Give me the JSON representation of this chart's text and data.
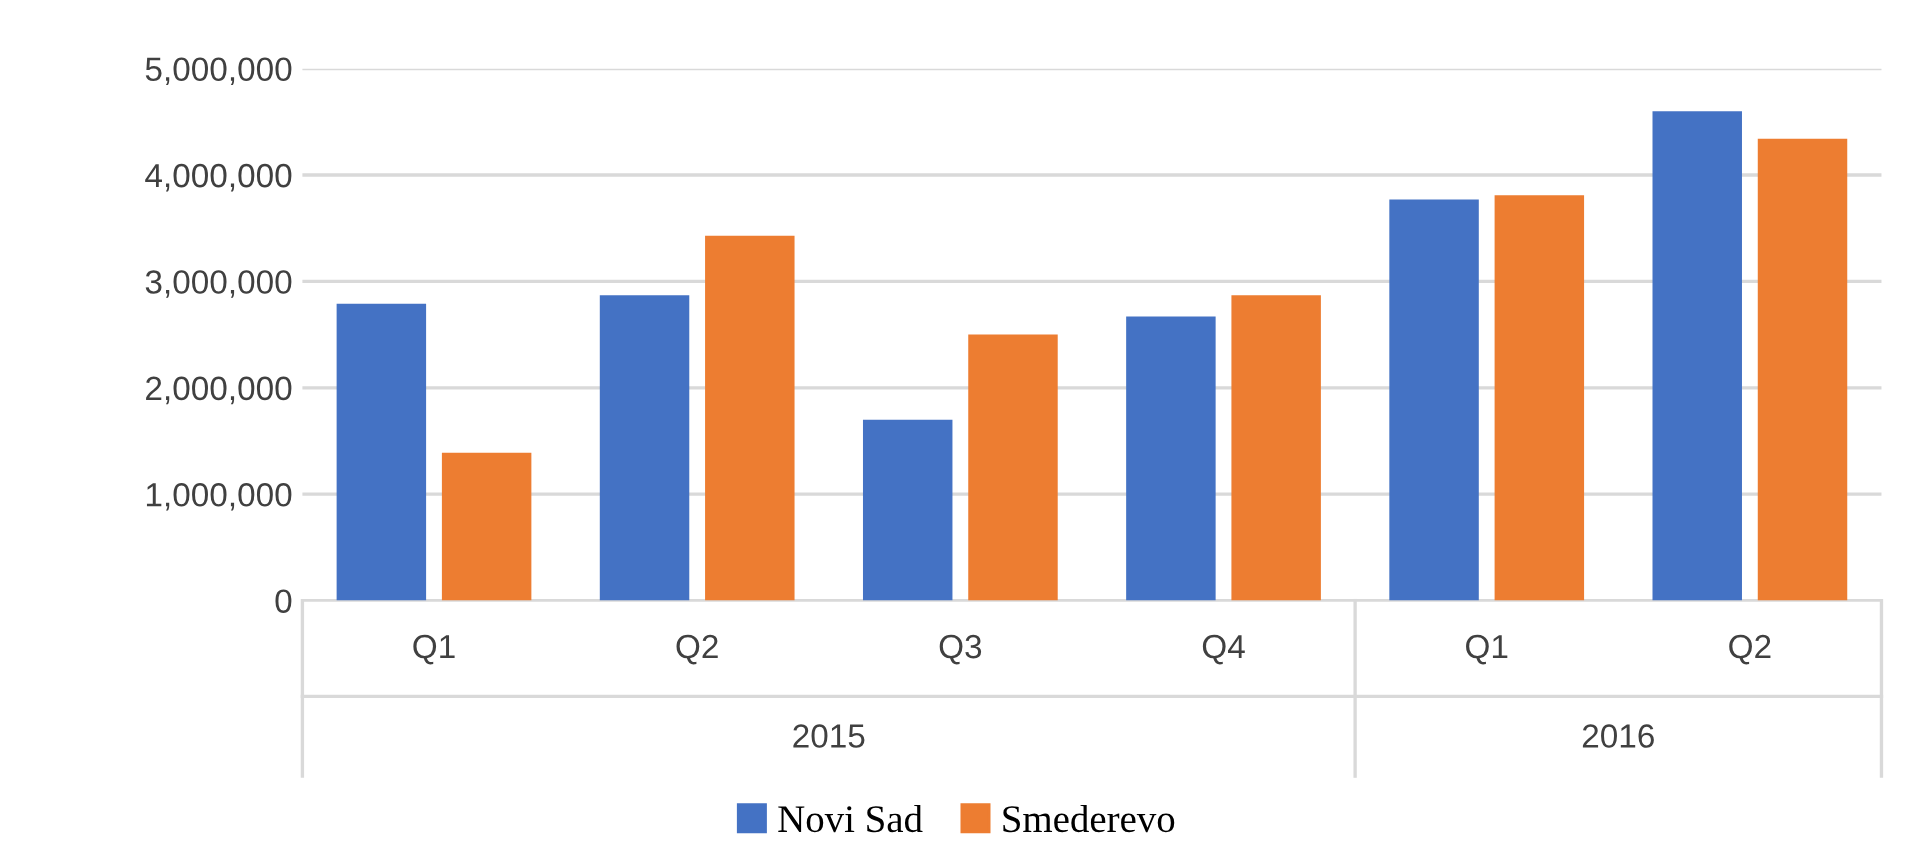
{
  "chart_data": {
    "type": "bar",
    "categories": [
      "Q1",
      "Q2",
      "Q3",
      "Q4",
      "Q1",
      "Q2"
    ],
    "series": [
      {
        "name": "Novi Sad",
        "color": "#4472c4",
        "values": [
          2790000,
          2870000,
          1700000,
          2670000,
          3770000,
          4600000
        ]
      },
      {
        "name": "Smederevo",
        "color": "#ed7d31",
        "values": [
          1390000,
          3430000,
          2500000,
          2870000,
          3810000,
          4340000
        ]
      }
    ],
    "annotations": [
      "2015",
      "2016"
    ],
    "ylim": [
      0,
      5000000
    ],
    "yticks": [
      {
        "value": 0,
        "label": "0"
      },
      {
        "value": 1000000,
        "label": "1,000,000"
      },
      {
        "value": 2000000,
        "label": "2,000,000"
      },
      {
        "value": 3000000,
        "label": "3,000,000"
      },
      {
        "value": 4000000,
        "label": "4,000,000"
      },
      {
        "value": 5000000,
        "label": "5,000,000"
      }
    ],
    "grid": "y",
    "legend": "bottom"
  }
}
